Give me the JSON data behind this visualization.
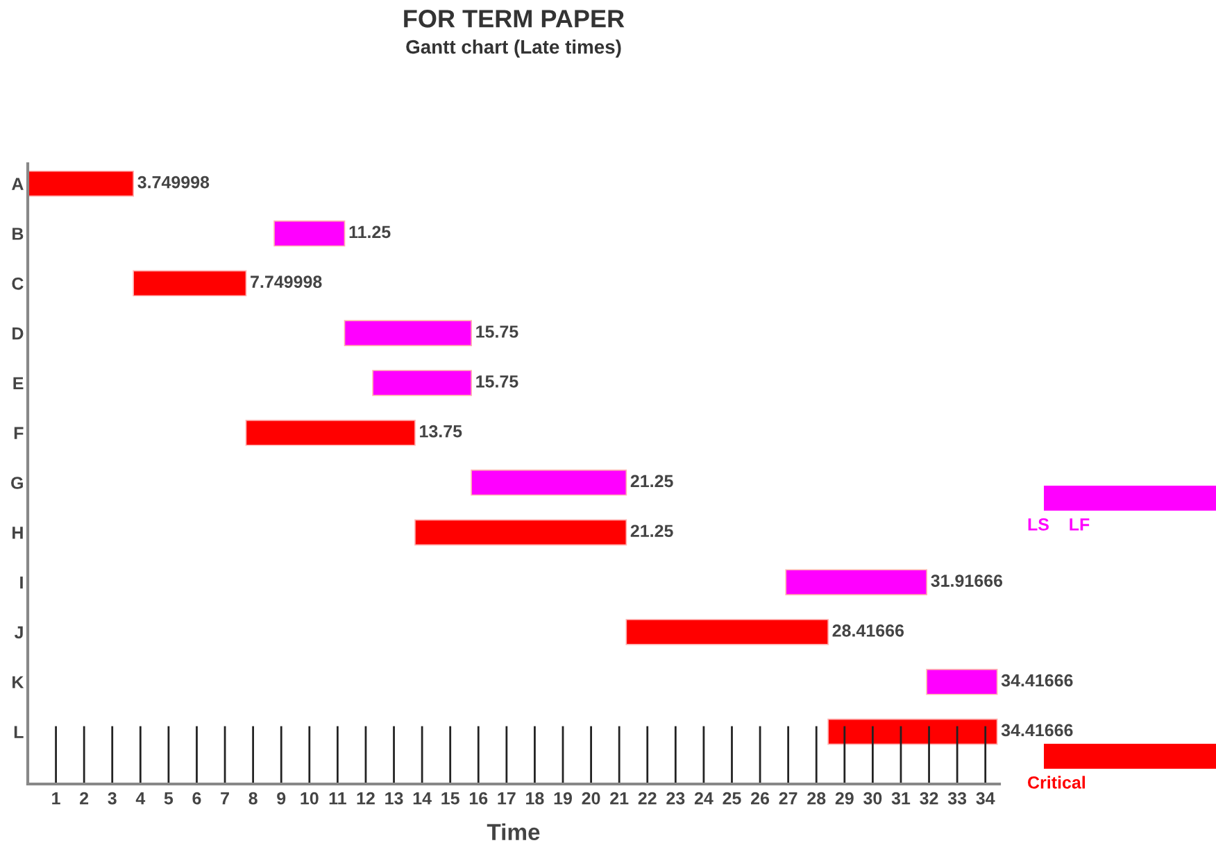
{
  "chart_data": {
    "type": "bar",
    "orientation": "horizontal",
    "title": "FOR TERM PAPER",
    "subtitle": "Gantt chart (Late times)",
    "xlabel": "Time",
    "categories": [
      "A",
      "B",
      "C",
      "D",
      "E",
      "F",
      "G",
      "H",
      "I",
      "J",
      "K",
      "L"
    ],
    "series": [
      {
        "name": "LS    LF",
        "color": "#ff00ff",
        "base": [
          null,
          8.75,
          null,
          11.25,
          12.25,
          null,
          15.75,
          null,
          26.91666,
          null,
          31.91666,
          null
        ],
        "values": [
          null,
          2.5,
          null,
          4.5,
          3.5,
          null,
          5.5,
          null,
          5,
          null,
          2.5,
          null
        ],
        "value_labels": [
          null,
          "11.25",
          null,
          "15.75",
          "15.75",
          null,
          "21.25",
          null,
          "31.91666",
          null,
          "34.41666",
          null
        ]
      },
      {
        "name": "Critical",
        "color": "#ff0000",
        "base": [
          0,
          null,
          3.749998,
          null,
          null,
          7.749998,
          null,
          13.75,
          null,
          21.25,
          null,
          28.41666
        ],
        "values": [
          3.749998,
          null,
          4,
          null,
          null,
          6,
          null,
          7.5,
          null,
          7.16666,
          null,
          6
        ],
        "value_labels": [
          "3.749998",
          null,
          "7.749998",
          null,
          null,
          "13.75",
          null,
          "21.25",
          null,
          "28.41666",
          null,
          "34.41666"
        ]
      }
    ],
    "xlim": [
      0,
      34.5
    ],
    "xticks": [
      1,
      2,
      3,
      4,
      5,
      6,
      7,
      8,
      9,
      10,
      11,
      12,
      13,
      14,
      15,
      16,
      17,
      18,
      19,
      20,
      21,
      22,
      23,
      24,
      25,
      26,
      27,
      28,
      29,
      30,
      31,
      32,
      33,
      34
    ],
    "grid": false,
    "legend": "right"
  }
}
